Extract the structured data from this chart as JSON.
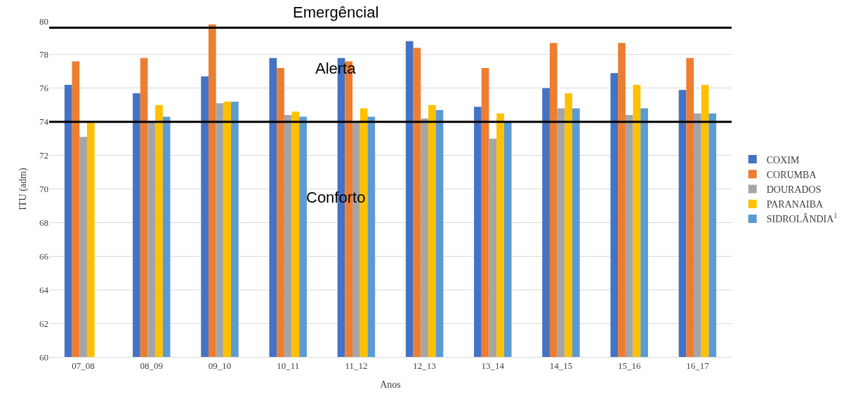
{
  "chart_data": {
    "type": "bar",
    "xlabel": "Anos",
    "ylabel": "ITU (adm)",
    "categories": [
      "07_08",
      "08_09",
      "09_10",
      "10_11",
      "11_12",
      "12_13",
      "13_14",
      "14_15",
      "15_16",
      "16_17"
    ],
    "series": [
      {
        "name": "COXIM",
        "color": "#4472c4",
        "values": [
          76.2,
          75.7,
          76.7,
          77.8,
          77.8,
          78.8,
          74.9,
          76.0,
          76.9,
          75.9
        ]
      },
      {
        "name": "CORUMBA",
        "color": "#ed7d31",
        "values": [
          77.6,
          77.8,
          79.8,
          77.2,
          77.6,
          78.4,
          77.2,
          78.7,
          78.7,
          77.8
        ]
      },
      {
        "name": "DOURADOS",
        "color": "#a5a5a5",
        "values": [
          73.1,
          74.0,
          75.1,
          74.4,
          74.0,
          74.2,
          73.0,
          74.8,
          74.4,
          74.5
        ]
      },
      {
        "name": "PARANAIBA",
        "color": "#ffc000",
        "values": [
          74.0,
          75.0,
          75.2,
          74.6,
          74.8,
          75.0,
          74.5,
          75.7,
          76.2,
          76.2
        ]
      },
      {
        "name": "SIDROLÂNDIA$^{1}$",
        "color": "#5b9bd5",
        "values": [
          null,
          74.3,
          75.2,
          74.3,
          74.3,
          74.7,
          74.0,
          74.8,
          74.8,
          74.5
        ]
      }
    ],
    "ylim": [
      60,
      80
    ],
    "yticks": [
      60,
      62,
      64,
      66,
      68,
      70,
      72,
      74,
      76,
      78,
      80
    ],
    "ref_lines": [
      {
        "axis": "y",
        "value": 79.6,
        "color": "#000000"
      },
      {
        "axis": "y",
        "value": 74.0,
        "color": "#000000"
      }
    ],
    "annotations": [
      "Emergêncial",
      "Alerta",
      "Conforto"
    ],
    "grid": "y",
    "legend": "right"
  }
}
